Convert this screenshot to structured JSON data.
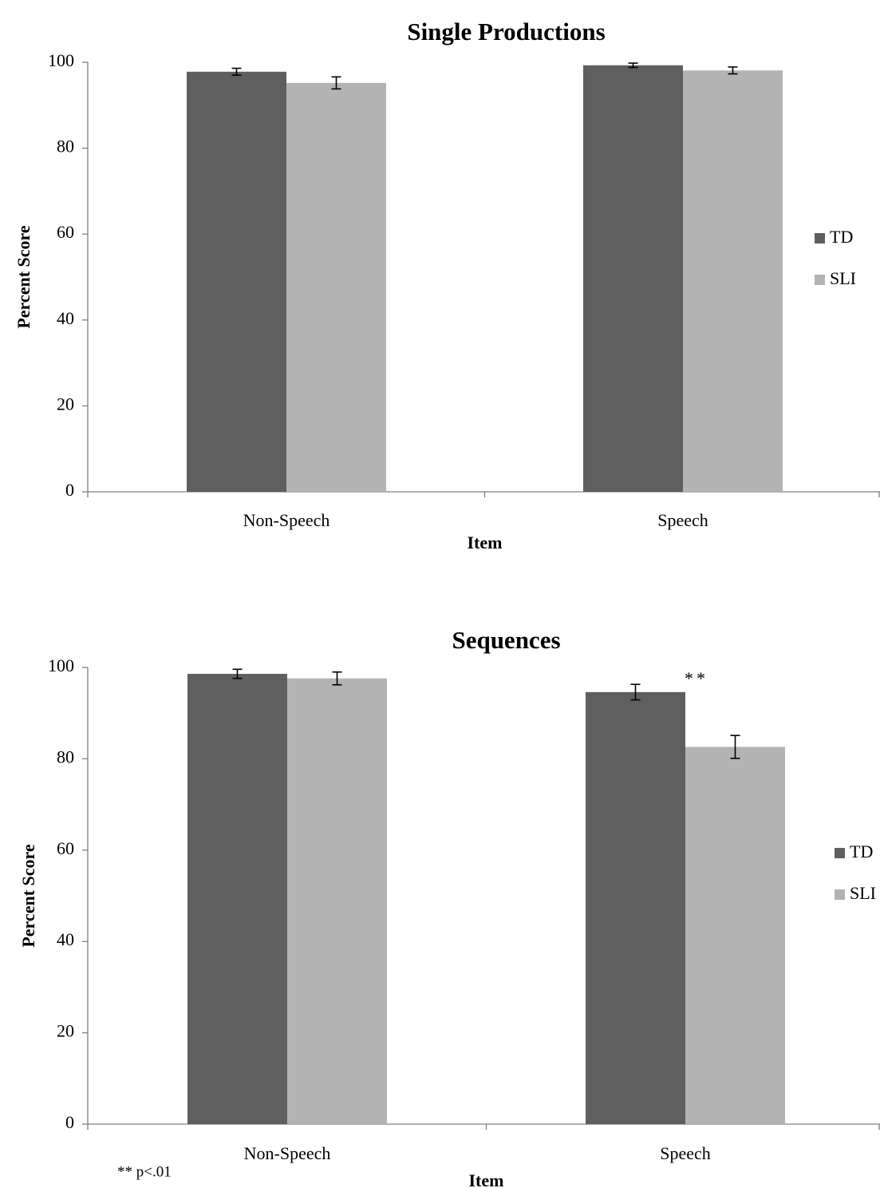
{
  "chart_data": [
    {
      "type": "bar",
      "title": "Single Productions",
      "xlabel": "Item",
      "ylabel": "Percent Score",
      "categories": [
        "Non-Speech",
        "Speech"
      ],
      "ylim": [
        0,
        100
      ],
      "yticks": [
        0,
        20,
        40,
        60,
        80,
        100
      ],
      "grid": false,
      "legend_position": "right",
      "series": [
        {
          "name": "TD",
          "color": "#5f5f5f",
          "values": [
            97.8,
            99.3
          ],
          "errors": [
            0.8,
            0.5
          ]
        },
        {
          "name": "SLI",
          "color": "#b3b3b3",
          "values": [
            95.2,
            98.1
          ],
          "errors": [
            1.4,
            0.8
          ]
        }
      ],
      "annotations": []
    },
    {
      "type": "bar",
      "title": "Sequences",
      "xlabel": "Item",
      "ylabel": "Percent Score",
      "categories": [
        "Non-Speech",
        "Speech"
      ],
      "ylim": [
        0,
        100
      ],
      "yticks": [
        0,
        20,
        40,
        60,
        80,
        100
      ],
      "grid": false,
      "legend_position": "right",
      "series": [
        {
          "name": "TD",
          "color": "#5f5f5f",
          "values": [
            98.6,
            94.6
          ],
          "errors": [
            1.0,
            1.7
          ]
        },
        {
          "name": "SLI",
          "color": "#b3b3b3",
          "values": [
            97.6,
            82.6
          ],
          "errors": [
            1.4,
            2.5
          ]
        }
      ],
      "annotations": [
        {
          "text": "**",
          "category": "Speech"
        }
      ]
    }
  ],
  "footnote": "** p<.01"
}
